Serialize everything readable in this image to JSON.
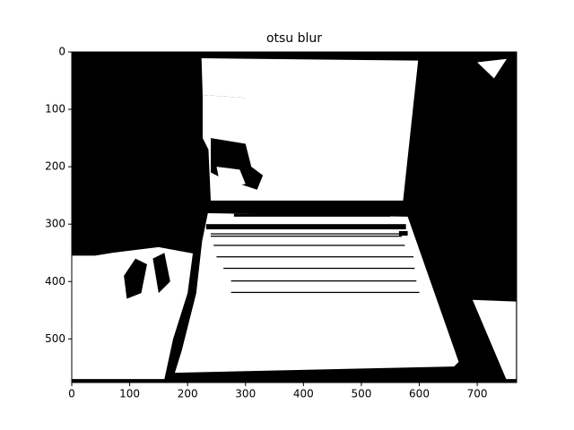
{
  "chart_data": {
    "type": "image",
    "title": "otsu blur",
    "xlim": [
      0,
      768
    ],
    "ylim": [
      576,
      0
    ],
    "xticks": [
      0,
      100,
      200,
      300,
      400,
      500,
      600,
      700
    ],
    "yticks": [
      0,
      100,
      200,
      300,
      400,
      500
    ]
  }
}
